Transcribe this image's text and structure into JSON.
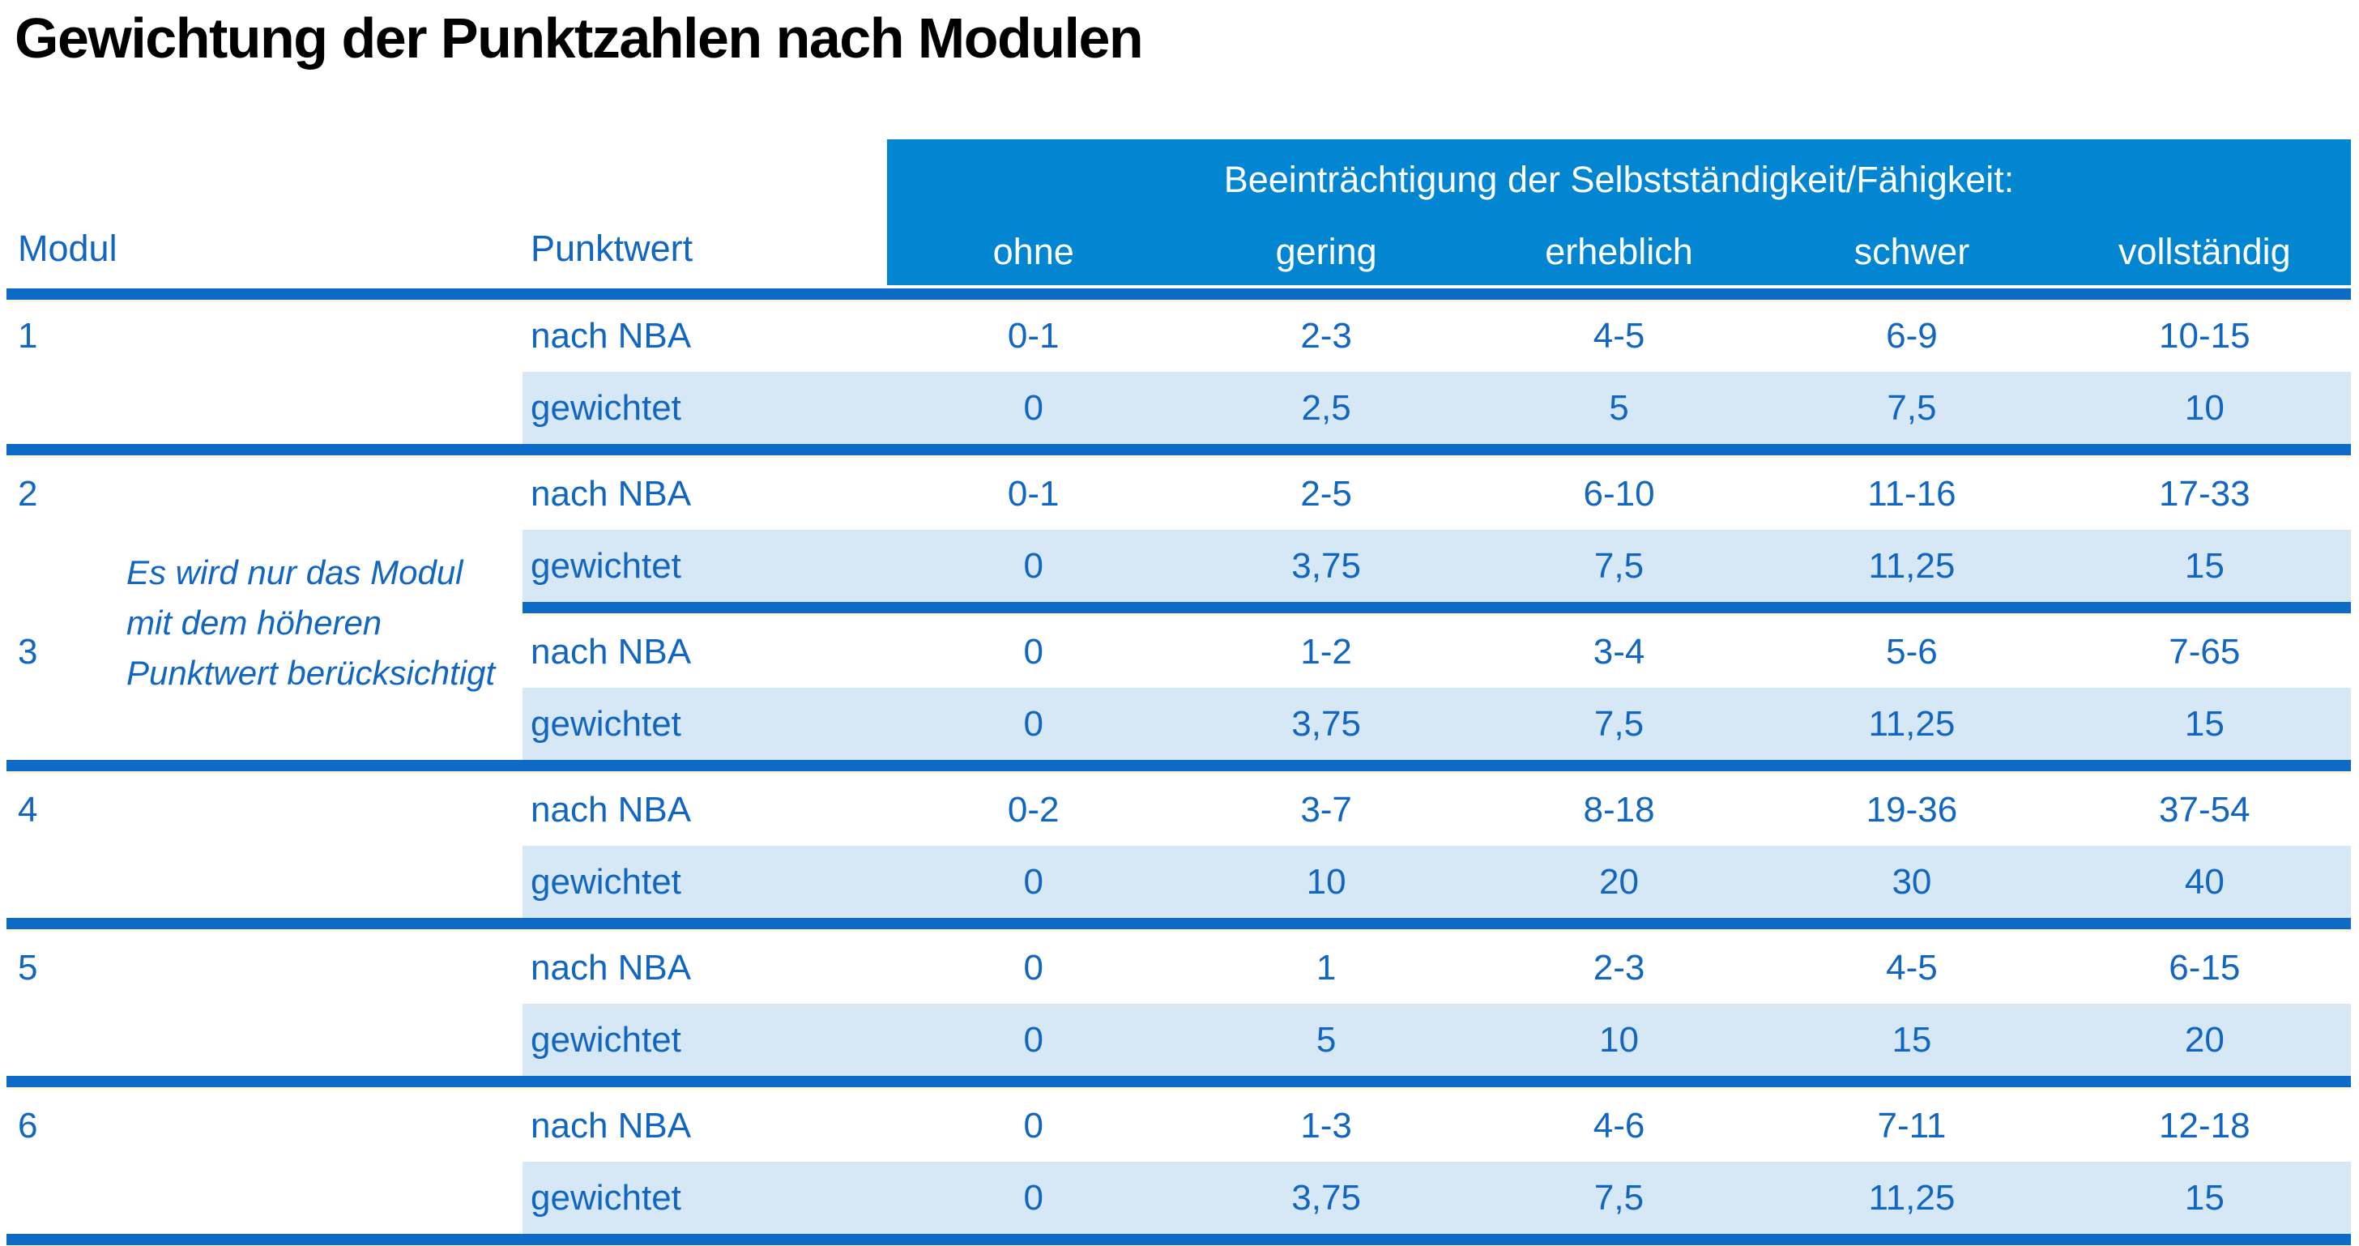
{
  "title": "Gewichtung der Punktzahlen nach Modulen",
  "table": {
    "group_header": "Beeinträchtigung der Selbstständigkeit/Fähigkeit:",
    "col_headers": {
      "modul": "Modul",
      "punktwert": "Punktwert"
    },
    "severity_columns": [
      "ohne",
      "gering",
      "erheblich",
      "schwer",
      "vollständig"
    ],
    "row_labels": {
      "raw": "nach NBA",
      "weighted": "gewichtet"
    },
    "modules": [
      {
        "id": "1",
        "nach_nba": [
          "0-1",
          "2-3",
          "4-5",
          "6-9",
          "10-15"
        ],
        "gewichtet": [
          "0",
          "2,5",
          "5",
          "7,5",
          "10"
        ],
        "divider_full": true
      },
      {
        "id": "2",
        "nach_nba": [
          "0-1",
          "2-5",
          "6-10",
          "11-16",
          "17-33"
        ],
        "gewichtet": [
          "0",
          "3,75",
          "7,5",
          "11,25",
          "15"
        ],
        "divider_full": false
      },
      {
        "id": "3",
        "nach_nba": [
          "0",
          "1-2",
          "3-4",
          "5-6",
          "7-65"
        ],
        "gewichtet": [
          "0",
          "3,75",
          "7,5",
          "11,25",
          "15"
        ],
        "divider_full": true
      },
      {
        "id": "4",
        "nach_nba": [
          "0-2",
          "3-7",
          "8-18",
          "19-36",
          "37-54"
        ],
        "gewichtet": [
          "0",
          "10",
          "20",
          "30",
          "40"
        ],
        "divider_full": true
      },
      {
        "id": "5",
        "nach_nba": [
          "0",
          "1",
          "2-3",
          "4-5",
          "6-15"
        ],
        "gewichtet": [
          "0",
          "5",
          "10",
          "15",
          "20"
        ],
        "divider_full": true
      },
      {
        "id": "6",
        "nach_nba": [
          "0",
          "1-3",
          "4-6",
          "7-11",
          "12-18"
        ],
        "gewichtet": [
          "0",
          "3,75",
          "7,5",
          "11,25",
          "15"
        ],
        "divider_full": true
      }
    ],
    "note": {
      "lines": [
        "Es wird nur das Modul",
        "mit dem höheren",
        "Punktwert berücksichtigt"
      ]
    }
  },
  "colors": {
    "header_band": "#0286d2",
    "divider_rule": "#0d6bc7",
    "weighted_row_shade": "#d6e7f6",
    "table_text": "#1166c2",
    "divider_underline": "#fcf5d8",
    "title_text": "#000000",
    "band_text": "#ffffff"
  }
}
